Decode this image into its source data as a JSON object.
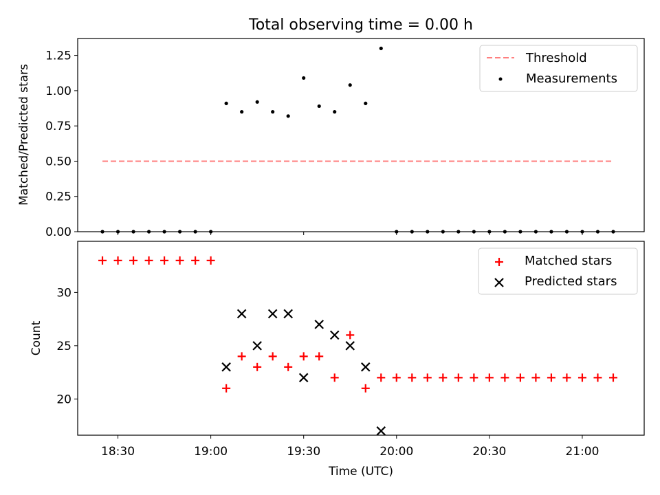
{
  "figure_title": "Total observing time = 0.00 h",
  "chart_data": [
    {
      "type": "scatter",
      "panel": "top",
      "ylabel": "Matched/Predicted stars",
      "xlabel": "",
      "xlim": [
        "18:17",
        "21:20"
      ],
      "ylim": [
        0,
        1.37
      ],
      "yticks": [
        0.0,
        0.25,
        0.5,
        0.75,
        1.0,
        1.25
      ],
      "ytick_labels": [
        "0.00",
        "0.25",
        "0.50",
        "0.75",
        "1.00",
        "1.25"
      ],
      "legend_position": "top-right",
      "threshold": {
        "name": "Threshold",
        "value": 0.5,
        "x_start": "18:25",
        "x_end": "21:10",
        "color": "#ff7f7f",
        "style": "dashed"
      },
      "measurements": {
        "name": "Measurements",
        "color": "#000000",
        "x": [
          "18:25",
          "18:30",
          "18:35",
          "18:40",
          "18:45",
          "18:50",
          "18:55",
          "19:00",
          "19:05",
          "19:10",
          "19:15",
          "19:20",
          "19:25",
          "19:30",
          "19:35",
          "19:40",
          "19:45",
          "19:50",
          "19:55",
          "20:00",
          "20:05",
          "20:10",
          "20:15",
          "20:20",
          "20:25",
          "20:30",
          "20:35",
          "20:40",
          "20:45",
          "20:50",
          "20:55",
          "21:00",
          "21:05",
          "21:10"
        ],
        "y": [
          0,
          0,
          0,
          0,
          0,
          0,
          0,
          0,
          0.91,
          0.85,
          0.92,
          0.85,
          0.82,
          1.09,
          0.89,
          0.85,
          1.04,
          0.91,
          1.3,
          0,
          0,
          0,
          0,
          0,
          0,
          0,
          0,
          0,
          0,
          0,
          0,
          0,
          0,
          0
        ]
      }
    },
    {
      "type": "scatter",
      "panel": "bottom",
      "ylabel": "Count",
      "xlabel": "Time (UTC)",
      "xlim": [
        "18:17",
        "21:20"
      ],
      "ylim": [
        16.6,
        34.8
      ],
      "yticks": [
        20,
        25,
        30
      ],
      "ytick_labels": [
        "20",
        "25",
        "30"
      ],
      "xticks": [
        "18:30",
        "19:00",
        "19:30",
        "20:00",
        "20:30",
        "21:00"
      ],
      "legend_position": "top-right",
      "series": [
        {
          "name": "Matched stars",
          "marker": "plus",
          "color": "#ff0000",
          "x": [
            "18:25",
            "18:30",
            "18:35",
            "18:40",
            "18:45",
            "18:50",
            "18:55",
            "19:00",
            "19:05",
            "19:10",
            "19:15",
            "19:20",
            "19:25",
            "19:30",
            "19:35",
            "19:40",
            "19:45",
            "19:50",
            "19:55",
            "20:00",
            "20:05",
            "20:10",
            "20:15",
            "20:20",
            "20:25",
            "20:30",
            "20:35",
            "20:40",
            "20:45",
            "20:50",
            "20:55",
            "21:00",
            "21:05",
            "21:10"
          ],
          "y": [
            33,
            33,
            33,
            33,
            33,
            33,
            33,
            33,
            21,
            24,
            23,
            24,
            23,
            24,
            24,
            22,
            26,
            21,
            22,
            22,
            22,
            22,
            22,
            22,
            22,
            22,
            22,
            22,
            22,
            22,
            22,
            22,
            22,
            22
          ]
        },
        {
          "name": "Predicted stars",
          "marker": "x",
          "color": "#000000",
          "x": [
            "19:05",
            "19:10",
            "19:15",
            "19:20",
            "19:25",
            "19:30",
            "19:35",
            "19:40",
            "19:45",
            "19:50",
            "19:55"
          ],
          "y": [
            23,
            28,
            25,
            28,
            28,
            22,
            27,
            26,
            25,
            23,
            17
          ]
        }
      ]
    }
  ]
}
